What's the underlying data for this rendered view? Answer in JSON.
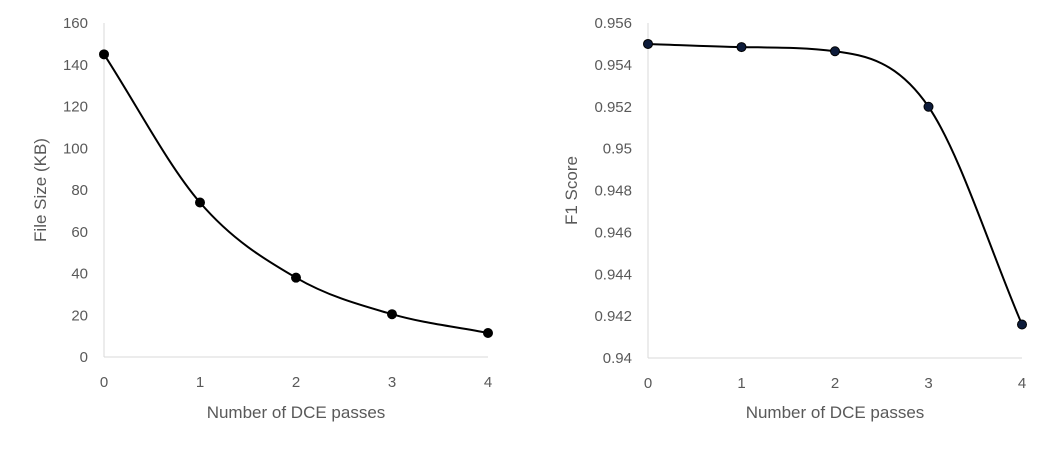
{
  "chart_data": [
    {
      "type": "line",
      "title": "",
      "xlabel": "Number of DCE passes",
      "ylabel": "File Size (KB)",
      "x": [
        0,
        1,
        2,
        3,
        4
      ],
      "series": [
        {
          "values": [
            145,
            74,
            38,
            20.5,
            11.5
          ]
        }
      ],
      "xlim": [
        0,
        4
      ],
      "ylim": [
        0,
        160
      ],
      "yticks": [
        "0",
        "20",
        "40",
        "60",
        "80",
        "100",
        "120",
        "140",
        "160"
      ],
      "xticks": [
        "0",
        "1",
        "2",
        "3",
        "4"
      ],
      "grid": false,
      "smooth": true,
      "colors": {
        "line": "#000000",
        "marker": "#000000",
        "marker_edge": "#000000"
      }
    },
    {
      "type": "line",
      "title": "",
      "xlabel": "Number of DCE passes",
      "ylabel": "F1 Score",
      "x": [
        0,
        1,
        2,
        3,
        4
      ],
      "series": [
        {
          "values": [
            0.955,
            0.95485,
            0.95465,
            0.952,
            0.9416
          ]
        }
      ],
      "xlim": [
        0,
        4
      ],
      "ylim": [
        0.94,
        0.956
      ],
      "yticks": [
        "0.94",
        "0.942",
        "0.944",
        "0.946",
        "0.948",
        "0.95",
        "0.952",
        "0.954",
        "0.956"
      ],
      "xticks": [
        "0",
        "1",
        "2",
        "3",
        "4"
      ],
      "grid": false,
      "smooth": true,
      "colors": {
        "line": "#000000",
        "marker": "#0d1b3a",
        "marker_edge": "#000000"
      }
    }
  ]
}
